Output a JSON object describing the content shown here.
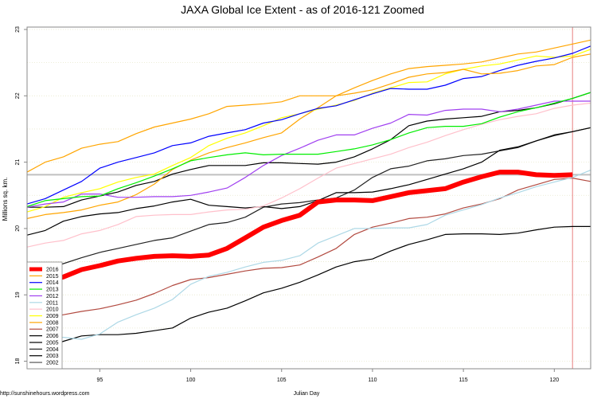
{
  "chart_data": {
    "type": "line",
    "title": "JAXA Global Ice Extent - as of 2016-121 Zoomed",
    "xlabel": "Julian Day",
    "ylabel": "Millions sq. km.",
    "credit": "http://sunshinehours.wordpress.com",
    "xlim": [
      91,
      122
    ],
    "ylim": [
      18,
      23
    ],
    "x_ticks": [
      95,
      100,
      105,
      110,
      115,
      120
    ],
    "y_ticks": [
      18,
      19,
      20,
      21,
      22,
      23
    ],
    "grid": "horizontal dotted every 0.5",
    "legend_position": "bottom-left",
    "reference_hline": {
      "value": 20.81,
      "color": "#c0c0c0"
    },
    "reference_vline": {
      "value": 121,
      "color": "#e06060"
    },
    "x_start": 91,
    "series": [
      {
        "name": "2016",
        "color": "#ff0000",
        "width": 6,
        "values": [
          19.15,
          19.2,
          19.27,
          19.38,
          19.44,
          19.51,
          19.55,
          19.58,
          19.59,
          19.58,
          19.6,
          19.7,
          19.86,
          20.02,
          20.12,
          20.2,
          20.4,
          20.43,
          20.43,
          20.42,
          20.48,
          20.54,
          20.57,
          20.6,
          20.7,
          20.78,
          20.85,
          20.85,
          20.81,
          20.8,
          20.81
        ]
      },
      {
        "name": "2015",
        "color": "#ffa500",
        "width": 1.2,
        "values": [
          20.85,
          21.0,
          21.08,
          21.21,
          21.27,
          21.31,
          21.43,
          21.53,
          21.59,
          21.65,
          21.73,
          21.84,
          21.86,
          21.88,
          21.91,
          22.0,
          22.0,
          22.0,
          22.04,
          22.09,
          22.18,
          22.28,
          22.33,
          22.35,
          22.4,
          22.33,
          22.34,
          22.38,
          22.45,
          22.47,
          22.58,
          22.63
        ]
      },
      {
        "name": "2014",
        "color": "#0000ff",
        "width": 1.2,
        "values": [
          20.37,
          20.45,
          20.58,
          20.71,
          20.91,
          21.0,
          21.07,
          21.14,
          21.25,
          21.29,
          21.39,
          21.44,
          21.49,
          21.59,
          21.64,
          21.73,
          21.81,
          21.85,
          21.94,
          22.03,
          22.11,
          22.1,
          22.1,
          22.16,
          22.26,
          22.29,
          22.38,
          22.46,
          22.52,
          22.57,
          22.64,
          22.75
        ]
      },
      {
        "name": "2013",
        "color": "#00ee00",
        "width": 1.2,
        "values": [
          20.33,
          20.42,
          20.45,
          20.48,
          20.49,
          20.6,
          20.69,
          20.79,
          20.9,
          21.02,
          21.07,
          21.11,
          21.14,
          21.11,
          21.12,
          21.12,
          21.12,
          21.16,
          21.2,
          21.26,
          21.34,
          21.44,
          21.52,
          21.54,
          21.54,
          21.58,
          21.68,
          21.76,
          21.82,
          21.89,
          21.96,
          22.05
        ]
      },
      {
        "name": "2012",
        "color": "#a040f0",
        "width": 1.2,
        "values": [
          20.32,
          20.37,
          20.4,
          20.52,
          20.52,
          20.47,
          20.47,
          20.48,
          20.48,
          20.5,
          20.55,
          20.61,
          20.77,
          20.95,
          21.1,
          21.21,
          21.33,
          21.41,
          21.41,
          21.51,
          21.59,
          21.72,
          21.71,
          21.78,
          21.8,
          21.8,
          21.76,
          21.8,
          21.86,
          21.92,
          21.92,
          21.92
        ]
      },
      {
        "name": "2011",
        "color": "#add8e6",
        "width": 1.2,
        "values": [
          18.3,
          18.33,
          18.36,
          18.33,
          18.41,
          18.59,
          18.7,
          18.8,
          18.93,
          19.16,
          19.28,
          19.34,
          19.42,
          19.49,
          19.52,
          19.59,
          19.78,
          19.89,
          20.0,
          20.0,
          20.01,
          20.01,
          20.06,
          20.2,
          20.28,
          20.36,
          20.46,
          20.54,
          20.63,
          20.7,
          20.77,
          20.88
        ]
      },
      {
        "name": "2010",
        "color": "#ffc0cb",
        "width": 1.2,
        "values": [
          19.72,
          19.78,
          19.82,
          19.92,
          19.97,
          20.06,
          20.18,
          20.2,
          20.21,
          20.21,
          20.25,
          20.28,
          20.29,
          20.34,
          20.46,
          20.6,
          20.76,
          20.91,
          20.98,
          21.05,
          21.12,
          21.22,
          21.3,
          21.4,
          21.49,
          21.57,
          21.64,
          21.69,
          21.73,
          21.81,
          21.86,
          21.89
        ]
      },
      {
        "name": "2009",
        "color": "#ffff00",
        "width": 1.2,
        "values": [
          20.25,
          20.33,
          20.47,
          20.54,
          20.6,
          20.7,
          20.77,
          20.82,
          20.95,
          21.07,
          21.25,
          21.36,
          21.44,
          21.55,
          21.67,
          21.73,
          21.8,
          21.86,
          21.93,
          22.04,
          22.12,
          22.2,
          22.21,
          22.33,
          22.4,
          22.45,
          22.48,
          22.54,
          22.6,
          22.58,
          22.6,
          22.7
        ]
      },
      {
        "name": "2008",
        "color": "#ffa500",
        "width": 1.2,
        "values": [
          20.15,
          20.21,
          20.24,
          20.28,
          20.35,
          20.4,
          20.51,
          20.67,
          20.89,
          21.03,
          21.14,
          21.22,
          21.29,
          21.37,
          21.44,
          21.65,
          21.82,
          22.0,
          22.12,
          22.23,
          22.33,
          22.41,
          22.44,
          22.46,
          22.48,
          22.51,
          22.57,
          22.63,
          22.66,
          22.72,
          22.78,
          22.84
        ]
      },
      {
        "name": "2007",
        "color": "#b24a40",
        "width": 1.2,
        "values": [
          18.59,
          18.65,
          18.7,
          18.75,
          18.79,
          18.85,
          18.92,
          19.02,
          19.14,
          19.23,
          19.26,
          19.31,
          19.36,
          19.4,
          19.41,
          19.45,
          19.57,
          19.7,
          19.91,
          20.02,
          20.08,
          20.15,
          20.17,
          20.22,
          20.31,
          20.37,
          20.45,
          20.58,
          20.66,
          20.74,
          20.76,
          20.71
        ]
      },
      {
        "name": "2006",
        "color": "#000000",
        "width": 1.2,
        "values": [
          20.32,
          20.32,
          20.33,
          20.43,
          20.49,
          20.55,
          20.65,
          20.71,
          20.82,
          20.89,
          20.95,
          20.95,
          20.95,
          20.99,
          20.99,
          20.98,
          20.97,
          21.0,
          21.08,
          21.2,
          21.34,
          21.55,
          21.62,
          21.65,
          21.67,
          21.69,
          21.76,
          21.78,
          21.82,
          21.88,
          21.96,
          22.05
        ]
      },
      {
        "name": "2005",
        "color": "#000000",
        "width": 1.2,
        "values": [
          19.9,
          19.97,
          20.11,
          20.18,
          20.22,
          20.24,
          20.3,
          20.34,
          20.4,
          20.44,
          20.35,
          20.33,
          20.31,
          20.33,
          20.3,
          20.33,
          20.42,
          20.54,
          20.54,
          20.55,
          20.6,
          20.66,
          20.74,
          20.82,
          20.9,
          21.0,
          21.18,
          21.23,
          21.32,
          21.41,
          21.46,
          21.52
        ]
      },
      {
        "name": "2004",
        "color": "#222222",
        "width": 1.2,
        "values": [
          19.3,
          19.38,
          19.47,
          19.56,
          19.64,
          19.7,
          19.76,
          19.82,
          19.86,
          19.96,
          20.06,
          20.09,
          20.17,
          20.32,
          20.37,
          20.39,
          20.43,
          20.46,
          20.58,
          20.77,
          20.9,
          20.94,
          21.02,
          21.05,
          21.1,
          21.12,
          21.17,
          21.22,
          21.32,
          21.4,
          21.46,
          21.52
        ]
      },
      {
        "name": "2003",
        "color": "#000000",
        "width": 1.2,
        "values": [
          18.07,
          18.2,
          18.3,
          18.38,
          18.4,
          18.4,
          18.42,
          18.46,
          18.5,
          18.65,
          18.74,
          18.8,
          18.91,
          19.03,
          19.1,
          19.19,
          19.3,
          19.42,
          19.5,
          19.54,
          19.66,
          19.76,
          19.83,
          19.91,
          19.92,
          19.92,
          19.91,
          19.93,
          19.98,
          20.02,
          20.03,
          20.03
        ]
      },
      {
        "name": "2002",
        "color": "#000000",
        "width": 0.8,
        "values": []
      }
    ]
  }
}
